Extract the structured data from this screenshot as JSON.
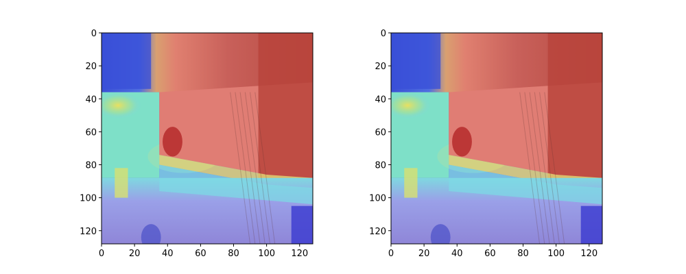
{
  "chart_data": [
    {
      "type": "heatmap",
      "title": "",
      "xlabel": "",
      "ylabel": "",
      "xlim": [
        0,
        128
      ],
      "ylim": [
        128,
        0
      ],
      "x_ticks": [
        0,
        20,
        40,
        60,
        80,
        100,
        120
      ],
      "y_ticks": [
        0,
        20,
        40,
        60,
        80,
        100,
        120
      ],
      "x_tick_labels": [
        "0",
        "20",
        "40",
        "60",
        "80",
        "100",
        "120"
      ],
      "y_tick_labels": [
        "0",
        "20",
        "40",
        "60",
        "80",
        "100",
        "120"
      ],
      "colormap": "jet",
      "grid": false
    },
    {
      "type": "heatmap",
      "title": "",
      "xlabel": "",
      "ylabel": "",
      "xlim": [
        0,
        128
      ],
      "ylim": [
        128,
        0
      ],
      "x_ticks": [
        0,
        20,
        40,
        60,
        80,
        100,
        120
      ],
      "y_ticks": [
        0,
        20,
        40,
        60,
        80,
        100,
        120
      ],
      "x_tick_labels": [
        "0",
        "20",
        "40",
        "60",
        "80",
        "100",
        "120"
      ],
      "y_tick_labels": [
        "0",
        "20",
        "40",
        "60",
        "80",
        "100",
        "120"
      ],
      "colormap": "jet",
      "grid": false
    }
  ]
}
